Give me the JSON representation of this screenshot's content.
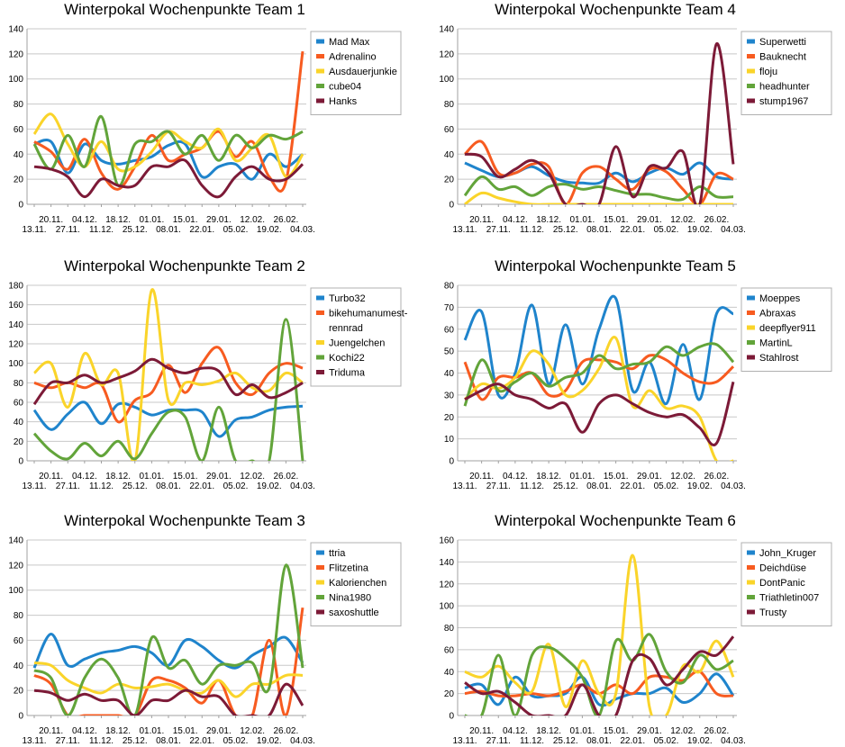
{
  "colors": [
    "#1f84cc",
    "#f75b20",
    "#fad42a",
    "#62a43a",
    "#7c1a37"
  ],
  "x_labels": [
    "13.11.",
    "20.11.",
    "27.11.",
    "04.12.",
    "11.12.",
    "18.12.",
    "25.12.",
    "01.01.",
    "08.01.",
    "15.01.",
    "22.01.",
    "29.01.",
    "05.02.",
    "12.02.",
    "19.02.",
    "26.02.",
    "04.03."
  ],
  "chart_data": [
    {
      "type": "line",
      "title": "Winterpokal Wochenpunkte Team 1",
      "ylim": [
        0,
        140
      ],
      "yticks": [
        0,
        20,
        40,
        60,
        80,
        100,
        120,
        140
      ],
      "series": [
        {
          "name": "Mad Max",
          "values": [
            48,
            50,
            25,
            48,
            35,
            32,
            35,
            38,
            47,
            48,
            22,
            30,
            32,
            20,
            40,
            30,
            40
          ]
        },
        {
          "name": "Adrenalino",
          "values": [
            50,
            42,
            28,
            52,
            25,
            12,
            30,
            55,
            35,
            40,
            45,
            58,
            38,
            50,
            22,
            18,
            122
          ]
        },
        {
          "name": "Ausdauerjunkie",
          "values": [
            56,
            72,
            48,
            30,
            50,
            28,
            30,
            42,
            58,
            50,
            45,
            60,
            35,
            45,
            55,
            22,
            40
          ]
        },
        {
          "name": "cube04",
          "values": [
            48,
            28,
            55,
            30,
            70,
            15,
            48,
            50,
            58,
            40,
            55,
            35,
            55,
            45,
            55,
            52,
            58
          ]
        },
        {
          "name": "Hanks",
          "values": [
            30,
            28,
            22,
            6,
            20,
            15,
            15,
            30,
            30,
            35,
            15,
            6,
            22,
            30,
            20,
            20,
            32
          ]
        }
      ]
    },
    {
      "type": "line",
      "title": "Winterpokal Wochenpunkte Team 4",
      "ylim": [
        0,
        140
      ],
      "yticks": [
        0,
        20,
        40,
        60,
        80,
        100,
        120,
        140
      ],
      "series": [
        {
          "name": "Superwetti",
          "values": [
            33,
            27,
            22,
            25,
            30,
            23,
            18,
            17,
            17,
            25,
            18,
            25,
            29,
            24,
            33,
            22,
            20
          ]
        },
        {
          "name": "Bauknecht",
          "values": [
            40,
            50,
            25,
            25,
            32,
            30,
            0,
            25,
            30,
            20,
            12,
            28,
            26,
            12,
            0,
            24,
            20
          ]
        },
        {
          "name": "floju",
          "values": [
            0,
            9,
            5,
            2,
            0,
            0,
            0,
            0,
            0,
            0,
            0,
            0,
            0,
            0,
            0,
            0,
            0
          ]
        },
        {
          "name": "headhunter",
          "values": [
            7,
            22,
            12,
            14,
            7,
            14,
            16,
            12,
            14,
            11,
            8,
            8,
            5,
            4,
            14,
            6,
            6
          ]
        },
        {
          "name": "stump1967",
          "values": [
            40,
            38,
            22,
            28,
            35,
            25,
            0,
            0,
            0,
            46,
            6,
            30,
            29,
            42,
            0,
            128,
            32
          ]
        }
      ]
    },
    {
      "type": "line",
      "title": "Winterpokal Wochenpunkte Team 2",
      "ylim": [
        0,
        180
      ],
      "yticks": [
        0,
        20,
        40,
        60,
        80,
        100,
        120,
        140,
        160,
        180
      ],
      "series": [
        {
          "name": "Turbo32",
          "values": [
            52,
            32,
            48,
            60,
            38,
            58,
            55,
            47,
            52,
            52,
            50,
            25,
            42,
            45,
            52,
            55,
            56
          ]
        },
        {
          "name": "bikehumanumest-rennrad",
          "values": [
            80,
            75,
            80,
            75,
            78,
            40,
            62,
            70,
            98,
            70,
            100,
            116,
            80,
            68,
            90,
            100,
            95
          ]
        },
        {
          "name": "Juengelchen",
          "values": [
            90,
            100,
            55,
            110,
            78,
            90,
            0,
            175,
            62,
            80,
            78,
            82,
            90,
            75,
            72,
            90,
            80
          ]
        },
        {
          "name": "Kochi22",
          "values": [
            28,
            10,
            2,
            18,
            5,
            20,
            2,
            28,
            50,
            45,
            0,
            55,
            0,
            0,
            0,
            145,
            0
          ]
        },
        {
          "name": "Triduma",
          "values": [
            58,
            80,
            80,
            88,
            80,
            85,
            92,
            104,
            95,
            90,
            95,
            92,
            68,
            78,
            65,
            70,
            80
          ]
        }
      ]
    },
    {
      "type": "line",
      "title": "Winterpokal Wochenpunkte Team 5",
      "ylim": [
        0,
        80
      ],
      "yticks": [
        0,
        10,
        20,
        30,
        40,
        50,
        60,
        70,
        80
      ],
      "series": [
        {
          "name": "Moeppes",
          "values": [
            55,
            68,
            30,
            40,
            71,
            35,
            62,
            35,
            60,
            74,
            32,
            45,
            26,
            53,
            28,
            67,
            67
          ]
        },
        {
          "name": "Abraxas",
          "values": [
            45,
            28,
            38,
            38,
            40,
            30,
            32,
            45,
            46,
            45,
            42,
            48,
            46,
            40,
            36,
            36,
            43
          ]
        },
        {
          "name": "deepflyer911",
          "values": [
            28,
            35,
            33,
            38,
            50,
            44,
            30,
            32,
            42,
            56,
            25,
            32,
            24,
            25,
            20,
            0,
            0
          ]
        },
        {
          "name": "MartinL",
          "values": [
            25,
            46,
            32,
            36,
            40,
            34,
            38,
            40,
            48,
            42,
            44,
            45,
            52,
            48,
            52,
            53,
            45
          ]
        },
        {
          "name": "Stahlrost",
          "values": [
            28,
            32,
            35,
            30,
            28,
            24,
            26,
            13,
            26,
            30,
            26,
            22,
            20,
            21,
            15,
            8,
            36
          ]
        }
      ]
    },
    {
      "type": "line",
      "title": "Winterpokal Wochenpunkte Team 3",
      "ylim": [
        0,
        140
      ],
      "yticks": [
        0,
        20,
        40,
        60,
        80,
        100,
        120,
        140
      ],
      "series": [
        {
          "name": "ttria",
          "values": [
            38,
            65,
            40,
            45,
            50,
            52,
            55,
            50,
            40,
            60,
            55,
            44,
            38,
            48,
            55,
            62,
            42
          ]
        },
        {
          "name": "Flitzetina",
          "values": [
            32,
            25,
            0,
            0,
            0,
            0,
            0,
            28,
            28,
            22,
            10,
            28,
            0,
            0,
            60,
            0,
            86
          ]
        },
        {
          "name": "Kalorienchen",
          "values": [
            42,
            40,
            28,
            22,
            18,
            25,
            22,
            23,
            25,
            20,
            18,
            28,
            15,
            25,
            25,
            32,
            32
          ]
        },
        {
          "name": "Nina1980",
          "values": [
            36,
            30,
            0,
            30,
            45,
            30,
            0,
            62,
            38,
            44,
            25,
            40,
            40,
            42,
            22,
            120,
            38
          ]
        },
        {
          "name": "saxoshuttle",
          "values": [
            20,
            18,
            12,
            17,
            12,
            12,
            0,
            12,
            12,
            20,
            15,
            15,
            0,
            0,
            0,
            25,
            8
          ]
        }
      ]
    },
    {
      "type": "line",
      "title": "Winterpokal Wochenpunkte Team 6",
      "ylim": [
        0,
        160
      ],
      "yticks": [
        0,
        20,
        40,
        60,
        80,
        100,
        120,
        140,
        160
      ],
      "series": [
        {
          "name": "John_Kruger",
          "values": [
            25,
            28,
            10,
            35,
            18,
            18,
            20,
            35,
            10,
            15,
            20,
            20,
            25,
            12,
            20,
            38,
            18
          ]
        },
        {
          "name": "Deichdüse",
          "values": [
            20,
            22,
            18,
            18,
            20,
            18,
            22,
            28,
            20,
            28,
            20,
            35,
            35,
            32,
            40,
            20,
            18
          ]
        },
        {
          "name": "DontPanic",
          "values": [
            40,
            35,
            45,
            30,
            22,
            65,
            8,
            50,
            20,
            20,
            146,
            8,
            0,
            45,
            40,
            68,
            35
          ]
        },
        {
          "name": "Triathletin007",
          "values": [
            0,
            0,
            55,
            0,
            55,
            62,
            52,
            35,
            0,
            68,
            50,
            74,
            40,
            30,
            55,
            42,
            50
          ]
        },
        {
          "name": "Trusty",
          "values": [
            30,
            20,
            22,
            12,
            0,
            0,
            0,
            28,
            0,
            0,
            50,
            52,
            28,
            42,
            58,
            55,
            72
          ]
        }
      ]
    }
  ]
}
